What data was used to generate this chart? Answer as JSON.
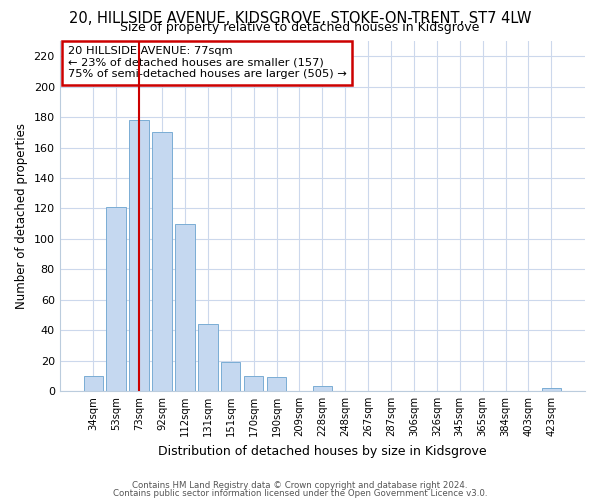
{
  "title": "20, HILLSIDE AVENUE, KIDSGROVE, STOKE-ON-TRENT, ST7 4LW",
  "subtitle": "Size of property relative to detached houses in Kidsgrove",
  "xlabel": "Distribution of detached houses by size in Kidsgrove",
  "ylabel": "Number of detached properties",
  "categories": [
    "34sqm",
    "53sqm",
    "73sqm",
    "92sqm",
    "112sqm",
    "131sqm",
    "151sqm",
    "170sqm",
    "190sqm",
    "209sqm",
    "228sqm",
    "248sqm",
    "267sqm",
    "287sqm",
    "306sqm",
    "326sqm",
    "345sqm",
    "365sqm",
    "384sqm",
    "403sqm",
    "423sqm"
  ],
  "values": [
    10,
    121,
    178,
    170,
    110,
    44,
    19,
    10,
    9,
    0,
    3,
    0,
    0,
    0,
    0,
    0,
    0,
    0,
    0,
    0,
    2
  ],
  "bar_color": "#c5d8f0",
  "bar_edge_color": "#7aadd4",
  "vline_x_idx": 2,
  "vline_color": "#cc0000",
  "annotation_line1": "20 HILLSIDE AVENUE: 77sqm",
  "annotation_line2": "← 23% of detached houses are smaller (157)",
  "annotation_line3": "75% of semi-detached houses are larger (505) →",
  "ylim": [
    0,
    230
  ],
  "yticks": [
    0,
    20,
    40,
    60,
    80,
    100,
    120,
    140,
    160,
    180,
    200,
    220
  ],
  "footer_line1": "Contains HM Land Registry data © Crown copyright and database right 2024.",
  "footer_line2": "Contains public sector information licensed under the Open Government Licence v3.0.",
  "background_color": "#ffffff",
  "grid_color": "#ccd8ec"
}
